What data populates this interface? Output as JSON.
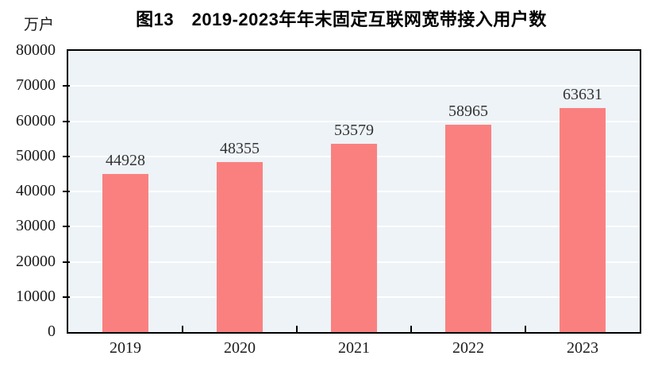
{
  "figure": {
    "title": "图13　2019-2023年年末固定互联网宽带接入用户数",
    "unit_label": "万户"
  },
  "chart_data": {
    "type": "bar",
    "title": "图13　2019-2023年年末固定互联网宽带接入用户数",
    "ylabel_unit": "万户",
    "xlabel": "",
    "categories": [
      "2019",
      "2020",
      "2021",
      "2022",
      "2023"
    ],
    "values": [
      44928,
      48355,
      53579,
      58965,
      63631
    ],
    "ylim": [
      0,
      80000
    ],
    "ytick_interval": 10000,
    "ytick_labels": [
      "0",
      "10000",
      "20000",
      "30000",
      "40000",
      "50000",
      "60000",
      "70000",
      "80000"
    ],
    "grid": "horizontal-white",
    "legend": "none",
    "data_labels": "above-bars",
    "colors": {
      "bar_fill": "#fa8080",
      "plot_background": "#edf3f7",
      "gridline": "#ffffff",
      "axis_border": "#000000",
      "label_text": "#333333",
      "title_text": "#000000"
    }
  }
}
